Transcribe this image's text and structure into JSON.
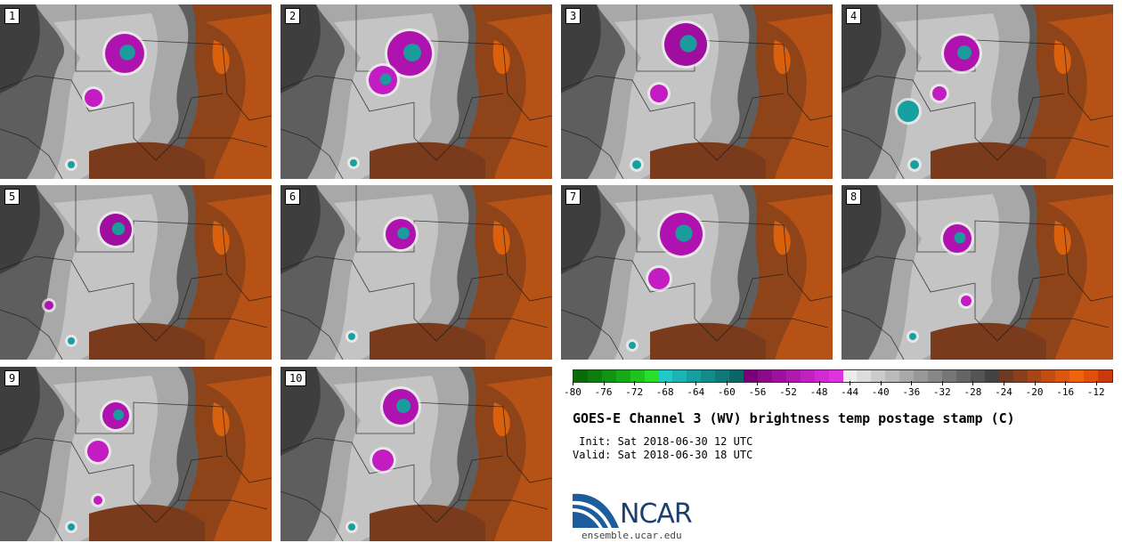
{
  "stamps": [
    {
      "label": "1"
    },
    {
      "label": "2"
    },
    {
      "label": "3"
    },
    {
      "label": "4"
    },
    {
      "label": "5"
    },
    {
      "label": "6"
    },
    {
      "label": "7"
    },
    {
      "label": "8"
    },
    {
      "label": "9"
    },
    {
      "label": "10"
    }
  ],
  "colorbar": {
    "min": -80,
    "max": -10,
    "tick_labels": [
      "-80",
      "-76",
      "-72",
      "-68",
      "-64",
      "-60",
      "-56",
      "-52",
      "-48",
      "-44",
      "-40",
      "-36",
      "-32",
      "-28",
      "-24",
      "-20",
      "-16",
      "-12"
    ],
    "tick_values": [
      -80,
      -76,
      -72,
      -68,
      -64,
      -60,
      -56,
      -52,
      -48,
      -44,
      -40,
      -36,
      -32,
      -28,
      -24,
      -20,
      -16,
      -12
    ],
    "colors": [
      "#0b6a0b",
      "#0e7d0e",
      "#129412",
      "#18a918",
      "#1fc21f",
      "#28de28",
      "#1fc9c9",
      "#1bb3b3",
      "#179e9e",
      "#148b8b",
      "#107878",
      "#0d6666",
      "#7a007a",
      "#8a0a8a",
      "#9c129c",
      "#ad1aad",
      "#bf22bf",
      "#d02ad0",
      "#e033e0",
      "#ececec",
      "#dcdcdc",
      "#cbcbcb",
      "#bababa",
      "#a9a9a9",
      "#989898",
      "#878787",
      "#767676",
      "#656565",
      "#545454",
      "#434343",
      "#6e3b22",
      "#8a3f1c",
      "#a64516",
      "#c24c12",
      "#db560e",
      "#ef640a",
      "#e0500b",
      "#c9390c"
    ]
  },
  "title": "GOES-E Channel 3 (WV) brightness temp postage stamp (C)",
  "init": " Init: Sat 2018-06-30 12 UTC",
  "valid": "Valid: Sat 2018-06-30 18 UTC",
  "logo": {
    "text": "NCAR",
    "url": "ensemble.ucar.edu"
  }
}
